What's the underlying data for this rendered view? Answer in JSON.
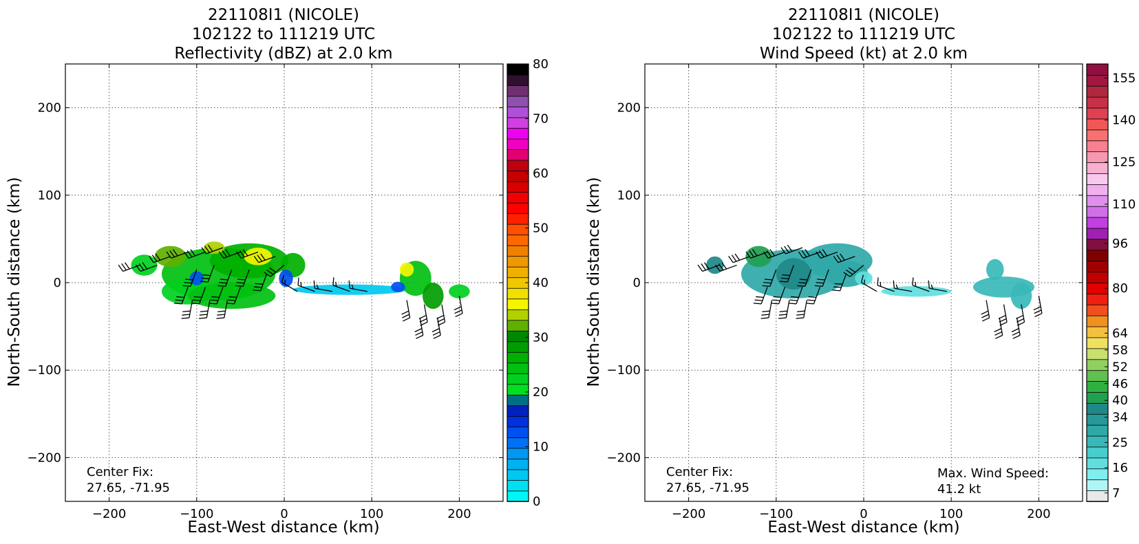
{
  "chart_data": [
    {
      "type": "heatmap",
      "title": [
        "221108I1 (NICOLE)",
        "102122 to 111219 UTC",
        "Reflectivity (dBZ) at 2.0 km"
      ],
      "xlabel": "East-West distance (km)",
      "ylabel": "North-South distance (km)",
      "xlim": [
        -250,
        250
      ],
      "ylim": [
        -250,
        250
      ],
      "xticks": [
        -200,
        -100,
        0,
        100,
        200
      ],
      "yticks": [
        -200,
        -100,
        0,
        100,
        200
      ],
      "grid": true,
      "colorbar": {
        "min": 0,
        "max": 80,
        "tick_labels": [
          "0",
          "10",
          "20",
          "30",
          "40",
          "50",
          "60",
          "70",
          "80"
        ],
        "colors": [
          "#00f5f5",
          "#00e0f0",
          "#00c8f0",
          "#00b0f0",
          "#0098f0",
          "#0070f5",
          "#0050f0",
          "#0030e0",
          "#0020c0",
          "#006e86",
          "#00e020",
          "#00d020",
          "#00c010",
          "#00b000",
          "#009c00",
          "#008800",
          "#60b000",
          "#b0d000",
          "#f5f500",
          "#f0e000",
          "#f0c800",
          "#f0b000",
          "#f09800",
          "#f08000",
          "#ff6800",
          "#ff5000",
          "#ff2000",
          "#ff0000",
          "#f00000",
          "#d80000",
          "#c80000",
          "#c00010",
          "#e00070",
          "#f000c0",
          "#f000f0",
          "#d040e0",
          "#b050d8",
          "#9050b0",
          "#703070",
          "#301030",
          "#000000"
        ]
      },
      "echoes": [
        {
          "x": -75,
          "y": 10,
          "rx": 65,
          "ry": 30,
          "value": 24
        },
        {
          "x": -40,
          "y": 25,
          "rx": 45,
          "ry": 20,
          "value": 27
        },
        {
          "x": -130,
          "y": 30,
          "rx": 18,
          "ry": 12,
          "value": 33
        },
        {
          "x": -160,
          "y": 20,
          "rx": 15,
          "ry": 12,
          "value": 22
        },
        {
          "x": -110,
          "y": -10,
          "rx": 30,
          "ry": 15,
          "value": 22
        },
        {
          "x": -60,
          "y": -15,
          "rx": 50,
          "ry": 15,
          "value": 24
        },
        {
          "x": 10,
          "y": 20,
          "rx": 14,
          "ry": 14,
          "value": 26
        },
        {
          "x": -30,
          "y": 30,
          "rx": 16,
          "ry": 10,
          "value": 36
        },
        {
          "x": -80,
          "y": 40,
          "rx": 12,
          "ry": 7,
          "value": 34
        },
        {
          "x": 2,
          "y": 5,
          "rx": 8,
          "ry": 10,
          "value": 12
        },
        {
          "x": -100,
          "y": 5,
          "rx": 8,
          "ry": 8,
          "value": 12
        },
        {
          "x": 75,
          "y": -8,
          "rx": 65,
          "ry": 6,
          "value": 4
        },
        {
          "x": 150,
          "y": 5,
          "rx": 18,
          "ry": 20,
          "value": 24
        },
        {
          "x": 140,
          "y": 15,
          "rx": 8,
          "ry": 8,
          "value": 36
        },
        {
          "x": 170,
          "y": -15,
          "rx": 12,
          "ry": 15,
          "value": 28
        },
        {
          "x": 200,
          "y": -10,
          "rx": 12,
          "ry": 8,
          "value": 22
        },
        {
          "x": 130,
          "y": -5,
          "rx": 8,
          "ry": 6,
          "value": 12
        }
      ],
      "annotations": [
        "Center Fix:",
        "27.65, -71.95"
      ]
    },
    {
      "type": "heatmap",
      "title": [
        "221108I1 (NICOLE)",
        "102122 to 111219 UTC",
        "Wind Speed (kt) at 2.0 km"
      ],
      "xlabel": "East-West distance (km)",
      "ylabel": "North-South distance (km)",
      "xlim": [
        -250,
        250
      ],
      "ylim": [
        -250,
        250
      ],
      "xticks": [
        -200,
        -100,
        0,
        100,
        200
      ],
      "yticks": [
        -200,
        -100,
        0,
        100,
        200
      ],
      "grid": true,
      "colorbar": {
        "min": 4,
        "max": 160,
        "tick_labels": [
          "7",
          "16",
          "25",
          "34",
          "40",
          "46",
          "52",
          "58",
          "64",
          "80",
          "96",
          "110",
          "125",
          "140",
          "155"
        ],
        "tick_values": [
          7,
          16,
          25,
          34,
          40,
          46,
          52,
          58,
          64,
          80,
          96,
          110,
          125,
          140,
          155
        ],
        "colors": [
          "#e8e8e8",
          "#b0f5f5",
          "#80eeee",
          "#60dede",
          "#48cccc",
          "#38b8b8",
          "#30a8a8",
          "#289898",
          "#208888",
          "#20a050",
          "#30b040",
          "#60c050",
          "#90d060",
          "#c8e070",
          "#f0e060",
          "#f5c040",
          "#f09020",
          "#f05020",
          "#f02010",
          "#e00000",
          "#c00000",
          "#a00000",
          "#800000",
          "#801040",
          "#a020b0",
          "#c040e0",
          "#d070e8",
          "#e090ec",
          "#f0b0ee",
          "#f8c8ee",
          "#f8b0d0",
          "#f898b0",
          "#f88090",
          "#f87070",
          "#f05858",
          "#e04050",
          "#c83048",
          "#b02840",
          "#a01840",
          "#901040"
        ]
      },
      "echoes": [
        {
          "x": -80,
          "y": 10,
          "rx": 60,
          "ry": 28,
          "value": 28
        },
        {
          "x": -30,
          "y": 25,
          "rx": 40,
          "ry": 20,
          "value": 28
        },
        {
          "x": -20,
          "y": 10,
          "rx": 25,
          "ry": 15,
          "value": 28
        },
        {
          "x": -120,
          "y": 30,
          "rx": 15,
          "ry": 12,
          "value": 40
        },
        {
          "x": -170,
          "y": 20,
          "rx": 10,
          "ry": 10,
          "value": 36
        },
        {
          "x": -80,
          "y": 10,
          "rx": 20,
          "ry": 18,
          "value": 38
        },
        {
          "x": 0,
          "y": 5,
          "rx": 10,
          "ry": 8,
          "value": 16
        },
        {
          "x": 60,
          "y": -10,
          "rx": 40,
          "ry": 6,
          "value": 18
        },
        {
          "x": 160,
          "y": -5,
          "rx": 35,
          "ry": 12,
          "value": 27
        },
        {
          "x": 150,
          "y": 15,
          "rx": 10,
          "ry": 12,
          "value": 27
        },
        {
          "x": 180,
          "y": -15,
          "rx": 12,
          "ry": 15,
          "value": 27
        }
      ],
      "annotations": [
        "Center Fix:",
        "27.65, -71.95",
        "Max. Wind Speed:",
        "41.2 kt"
      ]
    }
  ],
  "wind_barbs": [
    {
      "x": -165,
      "y": 20,
      "speed": 30,
      "dir": 250
    },
    {
      "x": -145,
      "y": 20,
      "speed": 30,
      "dir": 250
    },
    {
      "x": -130,
      "y": 30,
      "speed": 30,
      "dir": 250
    },
    {
      "x": -110,
      "y": 35,
      "speed": 30,
      "dir": 250
    },
    {
      "x": -90,
      "y": 35,
      "speed": 30,
      "dir": 250
    },
    {
      "x": -70,
      "y": 40,
      "speed": 30,
      "dir": 250
    },
    {
      "x": -50,
      "y": 35,
      "speed": 30,
      "dir": 250
    },
    {
      "x": -30,
      "y": 35,
      "speed": 30,
      "dir": 250
    },
    {
      "x": -10,
      "y": 30,
      "speed": 30,
      "dir": 250
    },
    {
      "x": -100,
      "y": 15,
      "speed": 30,
      "dir": 200
    },
    {
      "x": -80,
      "y": 20,
      "speed": 30,
      "dir": 200
    },
    {
      "x": -60,
      "y": 15,
      "speed": 30,
      "dir": 200
    },
    {
      "x": -40,
      "y": 15,
      "speed": 30,
      "dir": 200
    },
    {
      "x": -20,
      "y": 10,
      "speed": 30,
      "dir": 200
    },
    {
      "x": 0,
      "y": 20,
      "speed": 30,
      "dir": 230
    },
    {
      "x": -110,
      "y": -5,
      "speed": 30,
      "dir": 200
    },
    {
      "x": -90,
      "y": -5,
      "speed": 30,
      "dir": 200
    },
    {
      "x": -70,
      "y": -5,
      "speed": 30,
      "dir": 200
    },
    {
      "x": -50,
      "y": -5,
      "speed": 30,
      "dir": 200
    },
    {
      "x": -105,
      "y": -20,
      "speed": 30,
      "dir": 190
    },
    {
      "x": -85,
      "y": -20,
      "speed": 30,
      "dir": 190
    },
    {
      "x": -65,
      "y": -20,
      "speed": 30,
      "dir": 190
    },
    {
      "x": 15,
      "y": -10,
      "speed": 15,
      "dir": 300
    },
    {
      "x": 35,
      "y": -10,
      "speed": 15,
      "dir": 290
    },
    {
      "x": 55,
      "y": -10,
      "speed": 15,
      "dir": 280
    },
    {
      "x": 75,
      "y": -10,
      "speed": 15,
      "dir": 290
    },
    {
      "x": 95,
      "y": -10,
      "speed": 15,
      "dir": 280
    },
    {
      "x": 140,
      "y": -20,
      "speed": 30,
      "dir": 170
    },
    {
      "x": 160,
      "y": -25,
      "speed": 30,
      "dir": 170
    },
    {
      "x": 180,
      "y": -25,
      "speed": 30,
      "dir": 170
    },
    {
      "x": 155,
      "y": -40,
      "speed": 30,
      "dir": 170
    },
    {
      "x": 175,
      "y": -40,
      "speed": 30,
      "dir": 170
    },
    {
      "x": 200,
      "y": -15,
      "speed": 30,
      "dir": 170
    }
  ]
}
